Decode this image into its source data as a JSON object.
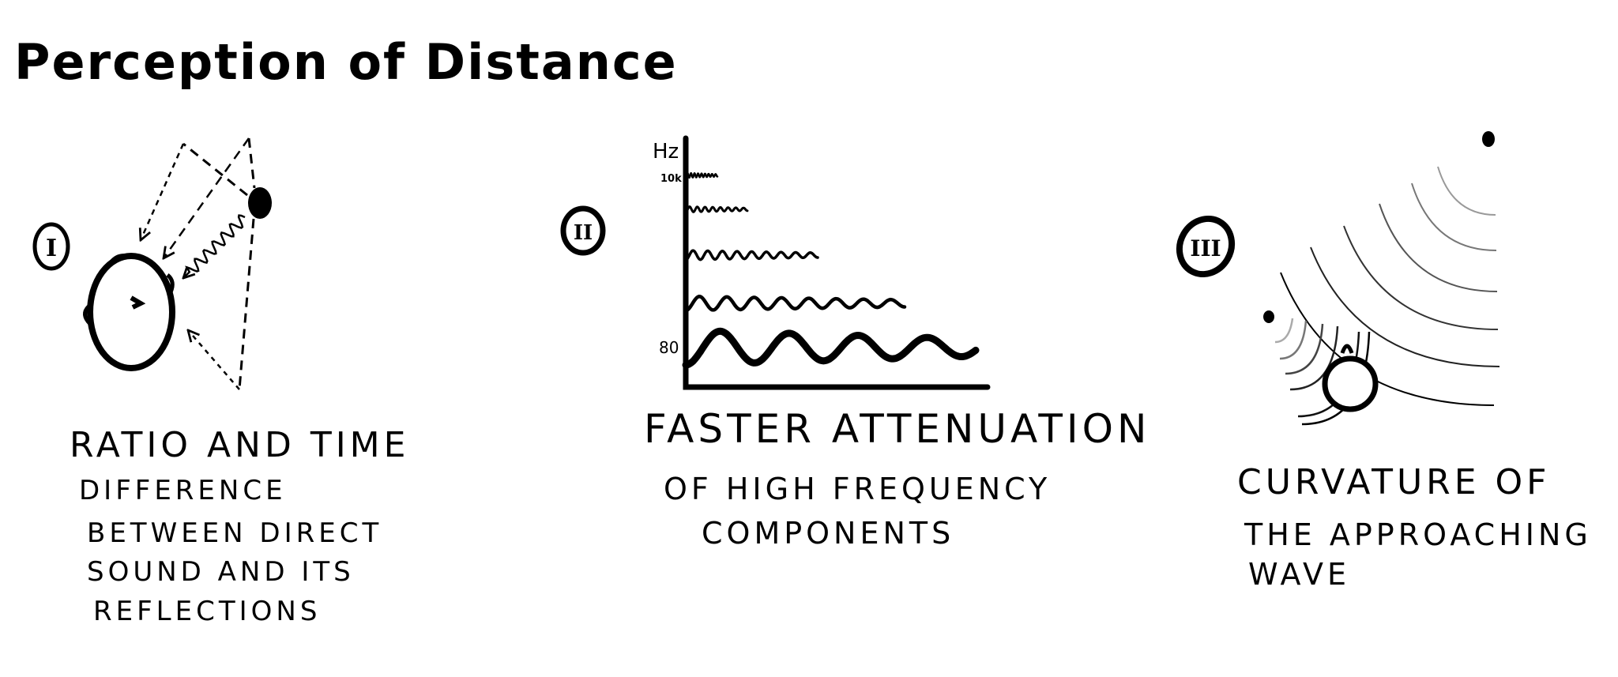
{
  "title": "Perception of Distance",
  "panels": [
    {
      "numeral": "I",
      "caption_lines": [
        "Ratio and time",
        "difference",
        "between direct",
        "sound and its",
        "reflections"
      ]
    },
    {
      "numeral": "II",
      "axis_unit": "Hz",
      "tick_labels": [
        "10k",
        "80"
      ],
      "caption_lines": [
        "Faster attenuation",
        "of high frequency",
        "components"
      ]
    },
    {
      "numeral": "III",
      "caption_lines": [
        "Curvature of",
        "the approaching",
        "wave"
      ]
    }
  ],
  "colors": {
    "ink": "#000000",
    "background": "#ffffff"
  }
}
